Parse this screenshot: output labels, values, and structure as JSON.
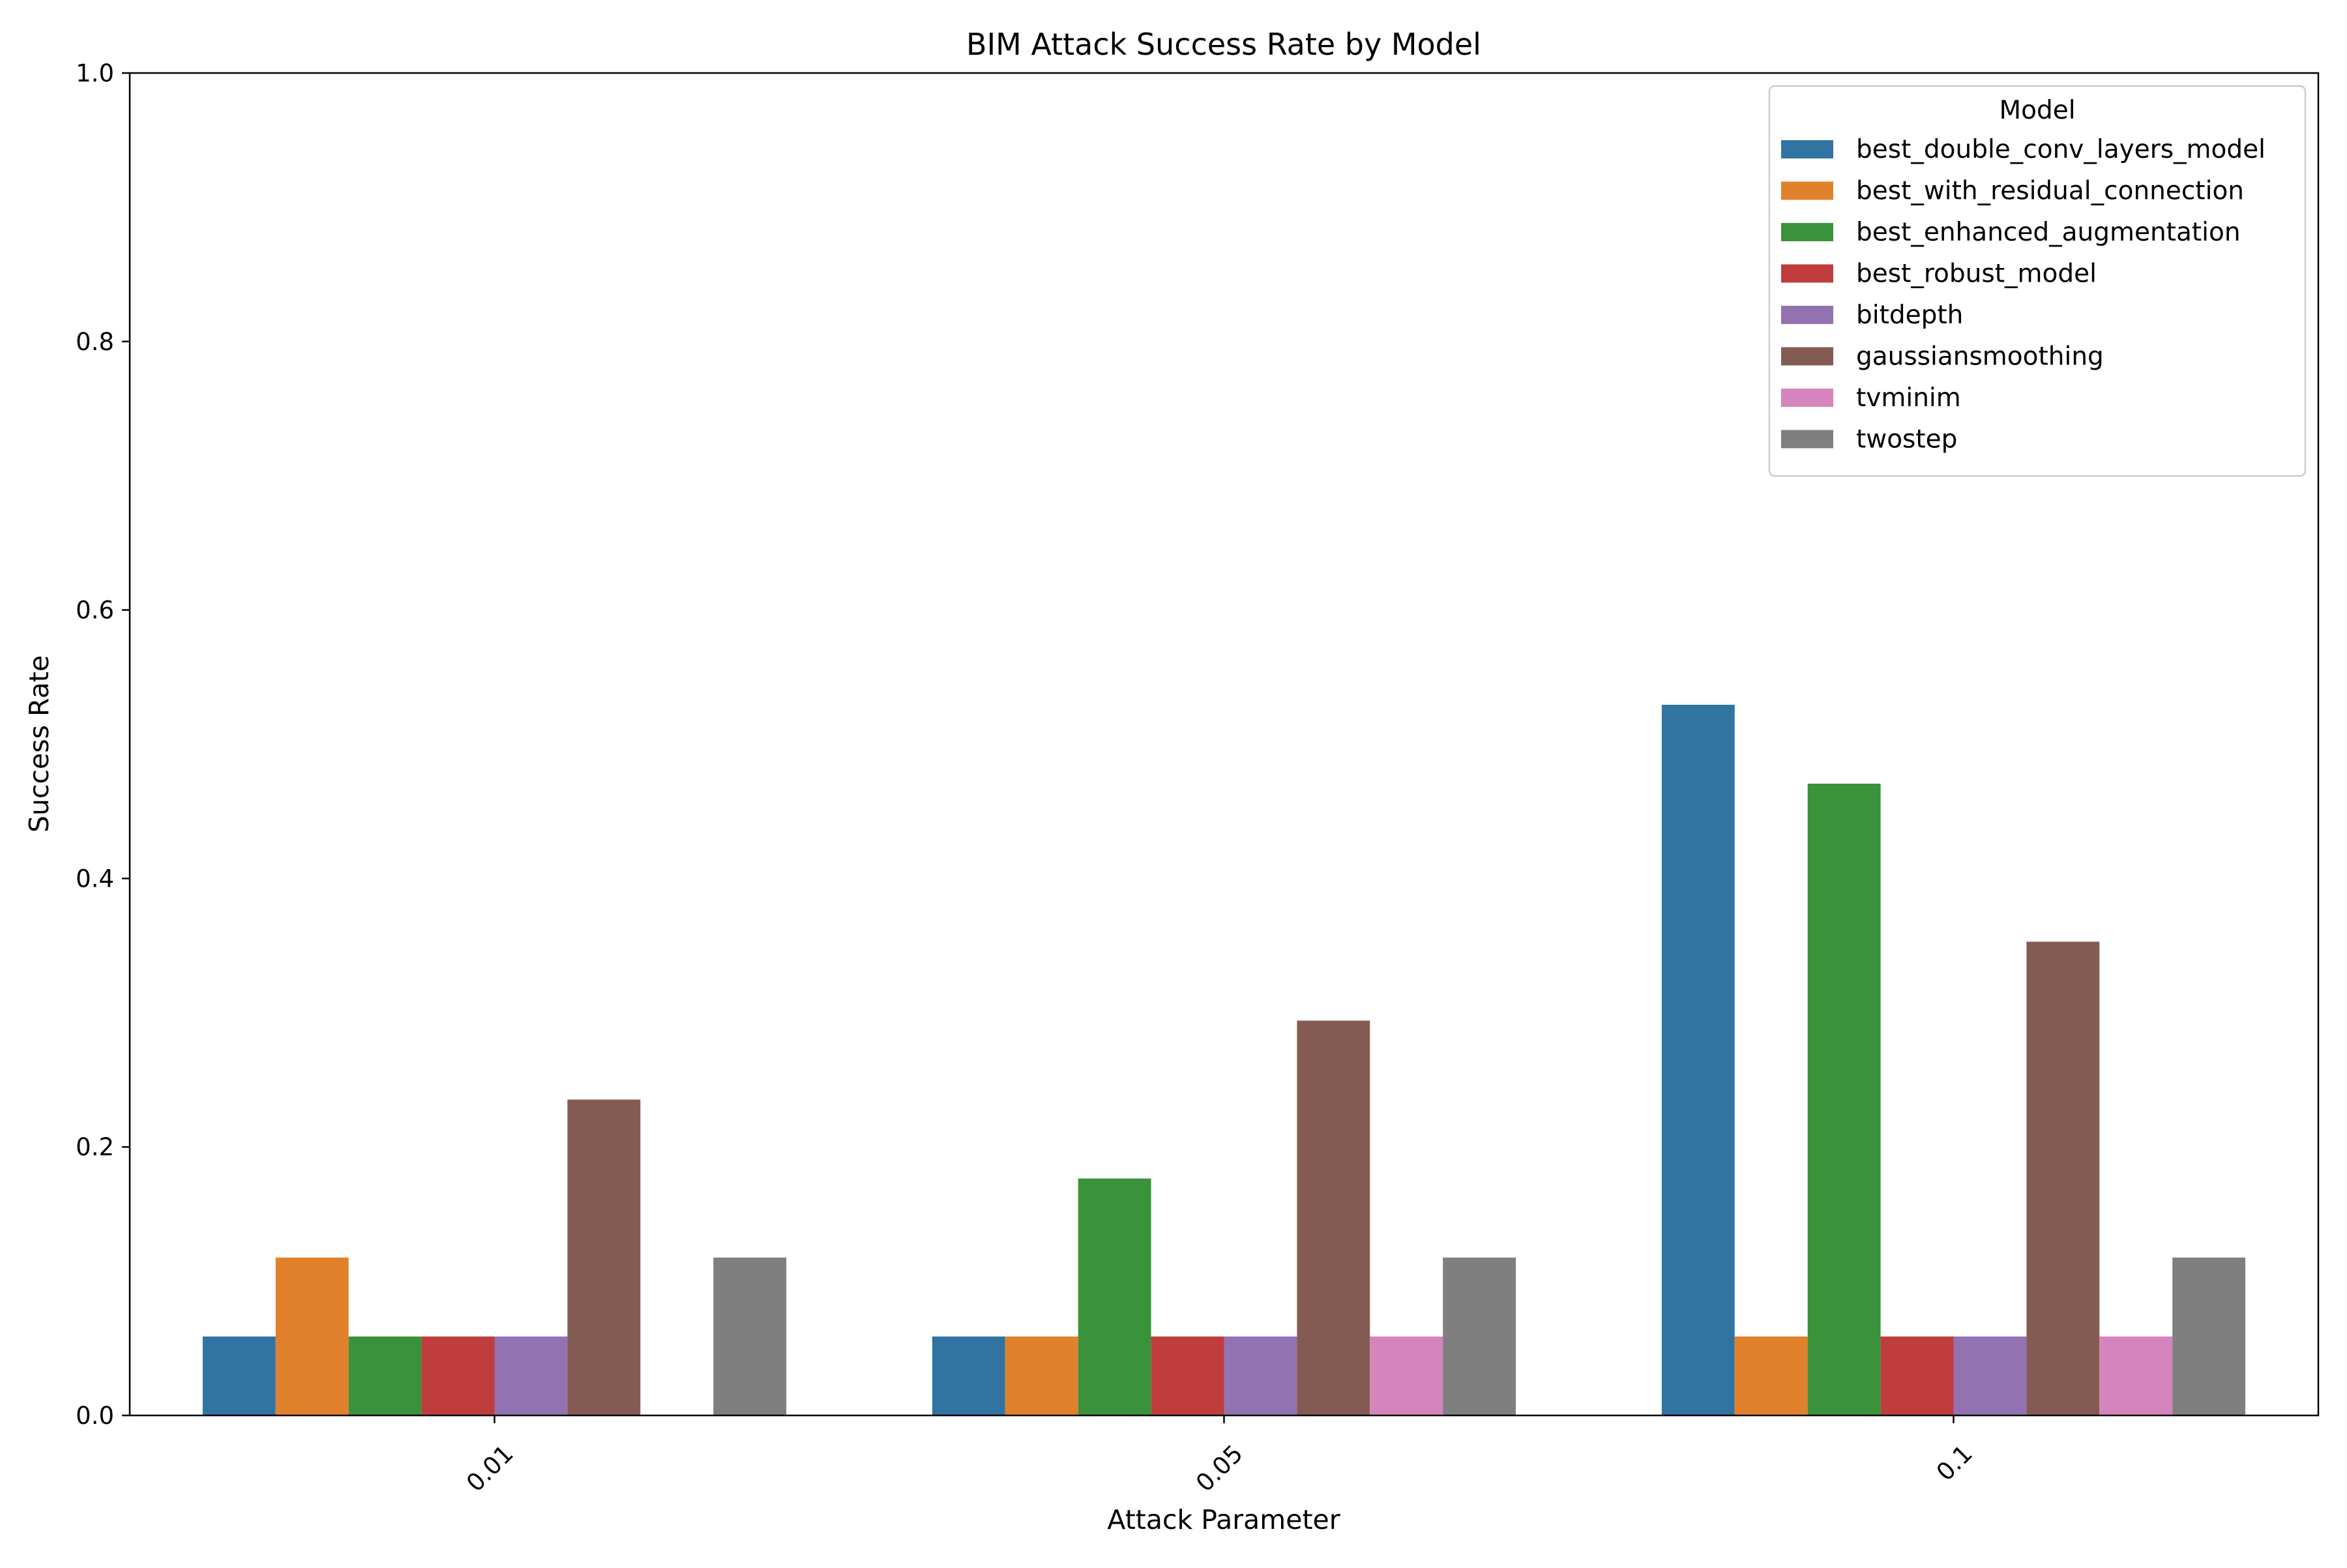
{
  "chart_data": {
    "type": "bar",
    "title": "BIM Attack Success Rate by Model",
    "xlabel": "Attack Parameter",
    "ylabel": "Success Rate",
    "categories": [
      "0.01",
      "0.05",
      "0.1"
    ],
    "ylim": [
      0,
      1.0
    ],
    "yticks": [
      "0.0",
      "0.2",
      "0.4",
      "0.6",
      "0.8",
      "1.0"
    ],
    "grid": false,
    "legend": {
      "title": "Model",
      "position": "top-right"
    },
    "series": [
      {
        "name": "best_double_conv_layers_model",
        "color": "#3274a1",
        "values": [
          0.0588,
          0.0588,
          0.5294
        ]
      },
      {
        "name": "best_with_residual_connection",
        "color": "#e1812c",
        "values": [
          0.1176,
          0.0588,
          0.0588
        ]
      },
      {
        "name": "best_enhanced_augmentation",
        "color": "#3a923a",
        "values": [
          0.0588,
          0.1765,
          0.4706
        ]
      },
      {
        "name": "best_robust_model",
        "color": "#c03d3e",
        "values": [
          0.0588,
          0.0588,
          0.0588
        ]
      },
      {
        "name": "bitdepth",
        "color": "#9372b2",
        "values": [
          0.0588,
          0.0588,
          0.0588
        ]
      },
      {
        "name": "gaussiansmoothing",
        "color": "#845b53",
        "values": [
          0.2353,
          0.2941,
          0.3529
        ]
      },
      {
        "name": "tvminim",
        "color": "#d684bd",
        "values": [
          0.0,
          0.0588,
          0.0588
        ]
      },
      {
        "name": "twostep",
        "color": "#7f7f7f",
        "values": [
          0.1176,
          0.1176,
          0.1176
        ]
      }
    ]
  }
}
